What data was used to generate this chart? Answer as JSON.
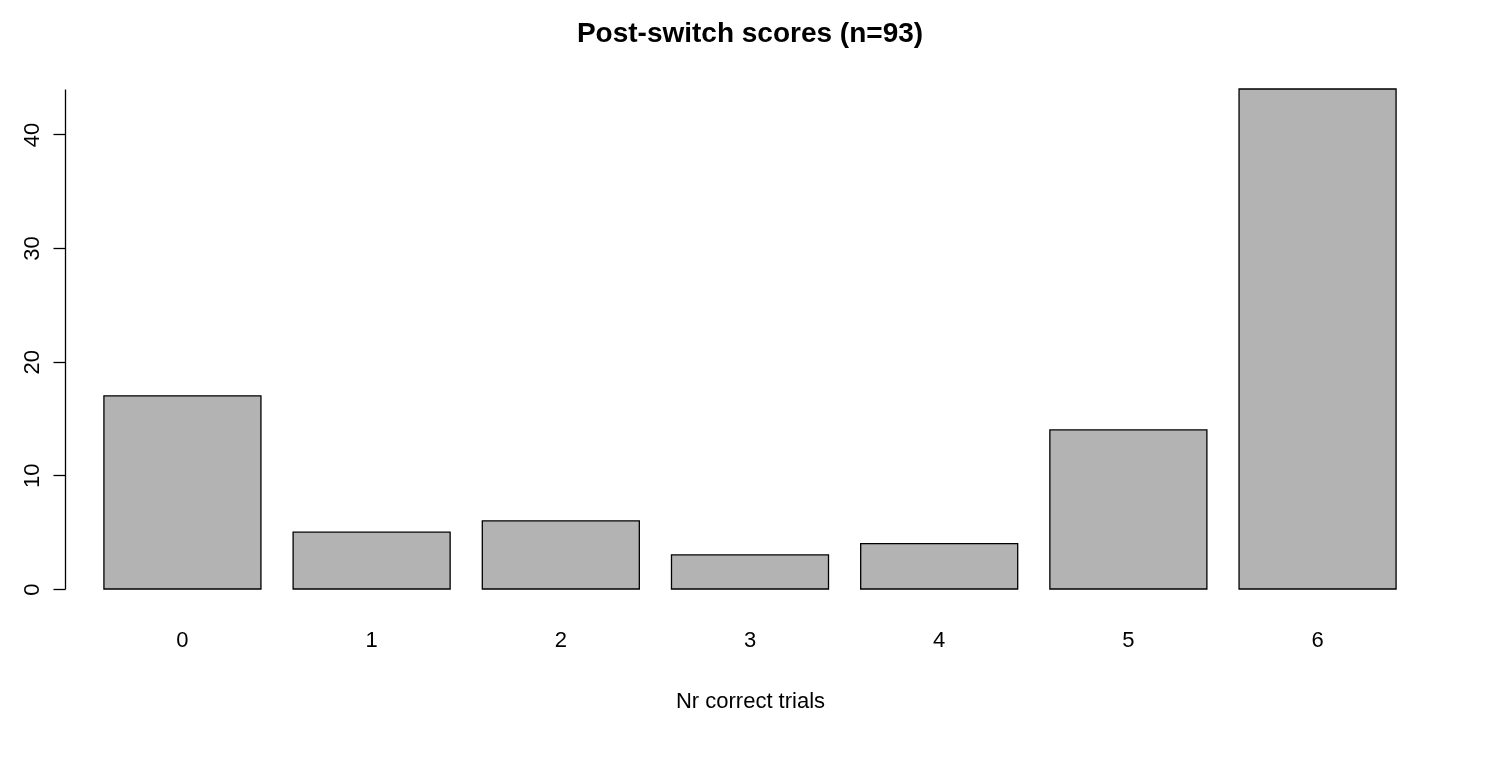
{
  "chart_data": {
    "type": "bar",
    "title": "Post-switch scores (n=93)",
    "xlabel": "Nr correct trials",
    "categories": [
      "0",
      "1",
      "2",
      "3",
      "4",
      "5",
      "6"
    ],
    "values": [
      17,
      5,
      6,
      3,
      4,
      14,
      44
    ],
    "color": "#b3b3b3",
    "ylim": [
      0,
      44
    ],
    "yticks": [
      0,
      10,
      20,
      30,
      40
    ],
    "grid": false
  }
}
